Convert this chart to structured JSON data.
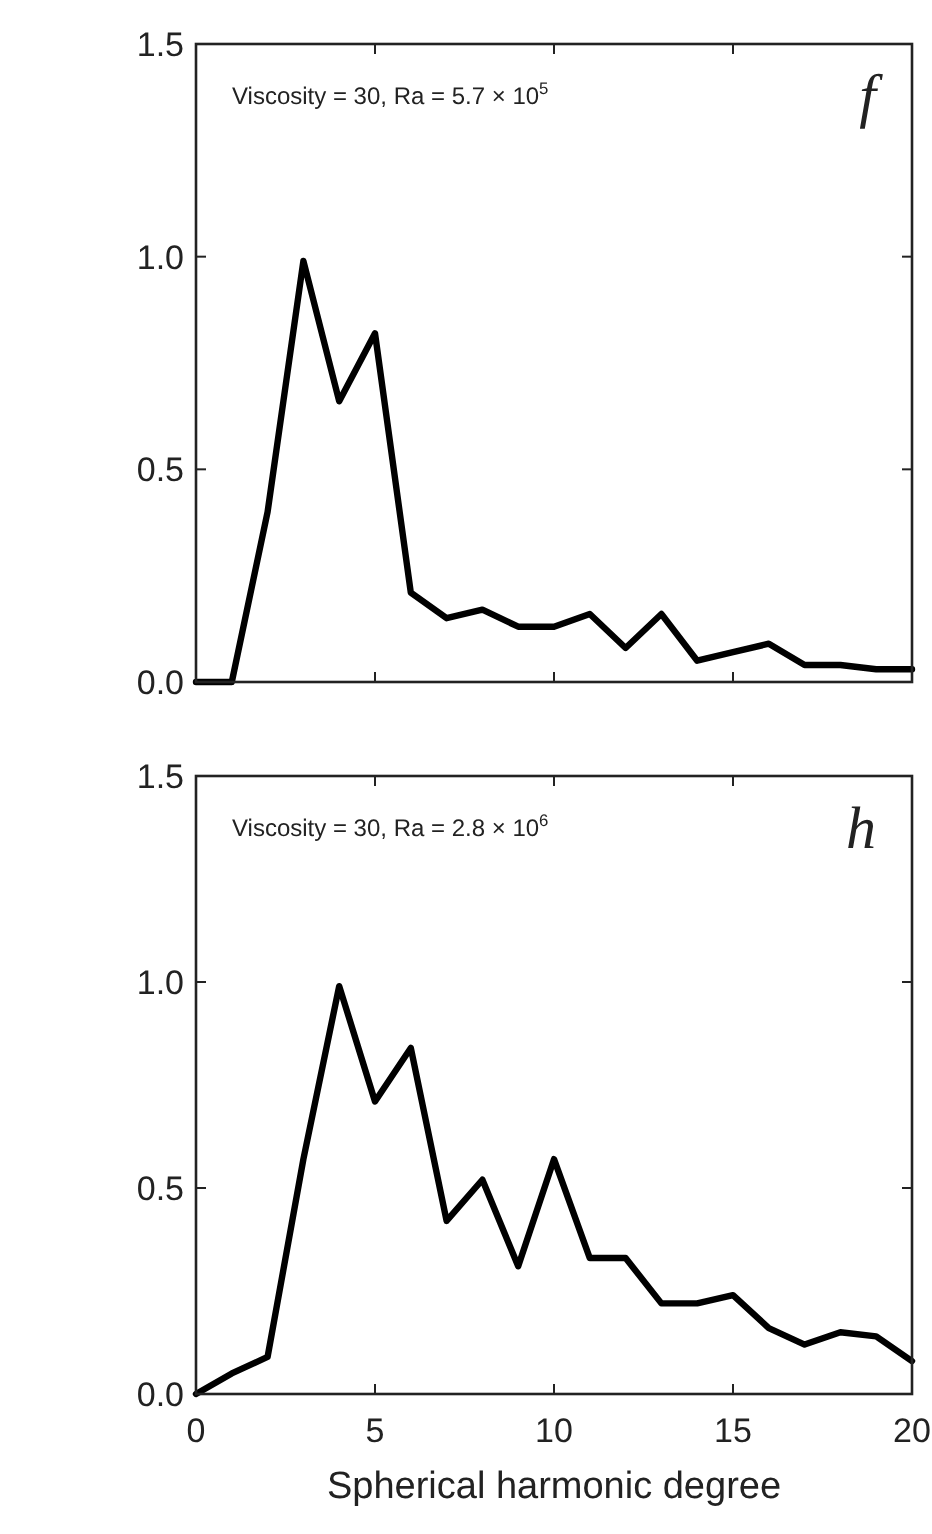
{
  "chart_data": [
    {
      "type": "line",
      "x": [
        0,
        1,
        2,
        3,
        4,
        5,
        6,
        7,
        8,
        9,
        10,
        11,
        12,
        13,
        14,
        15,
        16,
        17,
        18,
        19,
        20
      ],
      "series": [
        {
          "color": "#000000",
          "values": [
            0,
            0,
            0.4,
            0.99,
            0.66,
            0.82,
            0.21,
            0.15,
            0.17,
            0.13,
            0.13,
            0.16,
            0.08,
            0.16,
            0.05,
            0.07,
            0.09,
            0.04,
            0.04,
            0.03,
            0.03
          ]
        }
      ],
      "xlim": [
        0,
        20
      ],
      "xticks": [
        {
          "value": 0,
          "label": null
        },
        {
          "value": 5,
          "label": null
        },
        {
          "value": 10,
          "label": null
        },
        {
          "value": 15,
          "label": null
        },
        {
          "value": 20,
          "label": null
        }
      ],
      "ylim": [
        0,
        1.5
      ],
      "yticks": [
        {
          "value": 0,
          "label": "0.0"
        },
        {
          "value": 0.5,
          "label": "0.5"
        },
        {
          "value": 1,
          "label": "1.0"
        },
        {
          "value": 1.5,
          "label": "1.5"
        }
      ],
      "tick_labels": "y",
      "grid": false,
      "line_style": "solid",
      "annotations": [
        "Viscosity = 30, Ra = 5.7 × 10$^{5}$",
        "f"
      ]
    },
    {
      "type": "line",
      "x": [
        0,
        1,
        2,
        3,
        4,
        5,
        6,
        7,
        8,
        9,
        10,
        11,
        12,
        13,
        14,
        15,
        16,
        17,
        18,
        19,
        20
      ],
      "series": [
        {
          "color": "#000000",
          "values": [
            0,
            0.05,
            0.09,
            0.57,
            0.99,
            0.71,
            0.84,
            0.42,
            0.52,
            0.31,
            0.57,
            0.33,
            0.33,
            0.22,
            0.22,
            0.24,
            0.16,
            0.12,
            0.15,
            0.14,
            0.08
          ]
        }
      ],
      "xlabel": "Spherical harmonic degree",
      "xlim": [
        0,
        20
      ],
      "xticks": [
        0,
        5,
        10,
        15,
        20
      ],
      "ylim": [
        0,
        1.5
      ],
      "yticks": [
        {
          "value": 0,
          "label": "0.0"
        },
        {
          "value": 0.5,
          "label": "0.5"
        },
        {
          "value": 1,
          "label": "1.0"
        },
        {
          "value": 1.5,
          "label": "1.5"
        }
      ],
      "grid": false,
      "line_style": "solid",
      "annotations": [
        "Viscosity = 30, Ra = 2.8 × 10$^{6}$",
        "h"
      ]
    }
  ]
}
